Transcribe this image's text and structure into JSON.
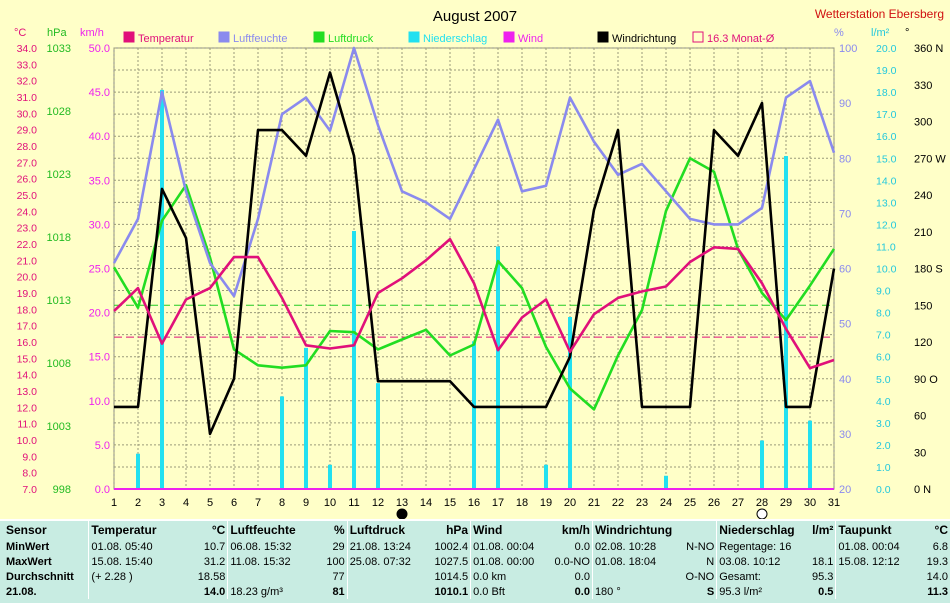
{
  "title": "August 2007",
  "station": "Wetterstation Ebersberg",
  "unit_headers": {
    "celsius": "°C",
    "hpa": "hPa",
    "kmh": "km/h",
    "percent": "%",
    "lm2": "l/m²",
    "degree": "°"
  },
  "legend": [
    {
      "label": "Temperatur",
      "color": "#e0107a"
    },
    {
      "label": "Luftfeuchte",
      "color": "#8a8aee"
    },
    {
      "label": "Luftdruck",
      "color": "#22dd22"
    },
    {
      "label": "Niederschlag",
      "color": "#22e0f0"
    },
    {
      "label": "Wind",
      "color": "#ee22ee"
    },
    {
      "label": "Windrichtung",
      "color": "#000000"
    },
    {
      "label": "16.3 Monat-Ø",
      "color": "#e0107a"
    }
  ],
  "axes": {
    "celsius": [
      "34.0",
      "33.0",
      "32.0",
      "31.0",
      "30.0",
      "29.0",
      "28.0",
      "27.0",
      "26.0",
      "25.0",
      "24.0",
      "23.0",
      "22.0",
      "21.0",
      "20.0",
      "19.0",
      "18.0",
      "17.0",
      "16.0",
      "15.0",
      "14.0",
      "13.0",
      "12.0",
      "11.0",
      "10.0",
      "9.0",
      "8.0",
      "7.0"
    ],
    "hpa": [
      "1033",
      "1028",
      "1023",
      "1018",
      "1013",
      "1008",
      "1003",
      "998"
    ],
    "kmh": [
      "50.0",
      "45.0",
      "40.0",
      "35.0",
      "30.0",
      "25.0",
      "20.0",
      "15.0",
      "10.0",
      "5.0",
      "0.0"
    ],
    "percent": [
      "100",
      "90",
      "80",
      "70",
      "60",
      "50",
      "40",
      "30",
      "20"
    ],
    "lm2": [
      "20.0",
      "19.0",
      "18.0",
      "17.0",
      "16.0",
      "15.0",
      "14.0",
      "13.0",
      "12.0",
      "11.0",
      "10.0",
      "9.0",
      "8.0",
      "7.0",
      "6.0",
      "5.0",
      "4.0",
      "3.0",
      "2.0",
      "1.0",
      "0.0"
    ],
    "degree": [
      "360 N",
      "330",
      "300",
      "270 W",
      "240",
      "210",
      "180 S",
      "150",
      "120",
      "90 O",
      "60",
      "30",
      "0 N"
    ],
    "days": [
      "1",
      "2",
      "3",
      "4",
      "5",
      "6",
      "7",
      "8",
      "9",
      "10",
      "11",
      "12",
      "13",
      "14",
      "15",
      "16",
      "17",
      "18",
      "19",
      "20",
      "21",
      "22",
      "23",
      "24",
      "25",
      "26",
      "27",
      "28",
      "29",
      "30",
      "31"
    ]
  },
  "chart_data": {
    "type": "line",
    "title": "August 2007",
    "xlabel": "",
    "x": [
      1,
      2,
      3,
      4,
      5,
      6,
      7,
      8,
      9,
      10,
      11,
      12,
      13,
      14,
      15,
      16,
      17,
      18,
      19,
      20,
      21,
      22,
      23,
      24,
      25,
      26,
      27,
      28,
      29,
      30,
      31
    ],
    "scales": {
      "temperature_c": [
        7,
        34
      ],
      "pressure_hpa": [
        998,
        1034
      ],
      "wind_kmh": [
        0,
        50
      ],
      "humidity_pct": [
        20,
        100
      ],
      "precip_lm2": [
        0,
        20
      ],
      "direction_deg": [
        0,
        360
      ]
    },
    "series": [
      {
        "name": "Temperatur",
        "axis": "temperature_c",
        "color": "#e0107a",
        "values": [
          17.9,
          19.3,
          15.9,
          18.6,
          19.3,
          21.2,
          21.2,
          18.7,
          15.8,
          15.6,
          15.8,
          19.0,
          19.9,
          21.0,
          22.3,
          19.6,
          15.5,
          17.5,
          18.6,
          15.4,
          17.7,
          18.7,
          19.1,
          19.4,
          20.9,
          21.8,
          21.7,
          19.6,
          16.8,
          14.4,
          14.9
        ]
      },
      {
        "name": "Luftfeuchte",
        "axis": "humidity_pct",
        "color": "#8a8aee",
        "values": [
          61,
          69,
          92,
          74,
          61,
          55,
          69,
          88,
          91,
          85,
          100,
          86,
          74,
          72,
          69,
          78,
          87,
          74,
          75,
          91,
          83,
          77,
          79,
          74,
          69,
          68,
          68,
          71,
          91,
          94,
          81
        ]
      },
      {
        "name": "Luftdruck",
        "axis": "pressure_hpa",
        "color": "#22dd22",
        "values": [
          1016.1,
          1012.8,
          1019.9,
          1022.8,
          1016.9,
          1009.4,
          1008.1,
          1007.9,
          1008.1,
          1010.9,
          1010.8,
          1009.4,
          1010.2,
          1011.0,
          1008.9,
          1009.8,
          1016.6,
          1014.4,
          1009.6,
          1006.2,
          1004.5,
          1008.9,
          1012.6,
          1020.7,
          1025.0,
          1023.9,
          1017.6,
          1014.0,
          1011.8,
          1014.6,
          1017.6
        ]
      },
      {
        "name": "Niederschlag",
        "axis": "precip_lm2",
        "type": "bar",
        "color": "#22e0f0",
        "values": [
          0,
          1.6,
          18.1,
          0,
          0,
          0,
          0,
          4.2,
          6.4,
          1.1,
          11.7,
          4.8,
          0,
          0,
          0,
          6.7,
          11.0,
          0,
          1.1,
          7.8,
          0,
          0,
          0,
          0.6,
          0,
          0,
          0,
          2.2,
          15.1,
          3.1,
          0
        ]
      },
      {
        "name": "Wind",
        "axis": "wind_kmh",
        "color": "#ee22ee",
        "values": [
          0,
          0,
          0,
          0,
          0,
          0,
          0,
          0,
          0,
          0,
          0,
          0,
          0,
          0,
          0,
          0,
          0,
          0,
          0,
          0,
          0,
          0,
          0,
          0,
          0,
          0,
          0,
          0,
          0,
          0,
          0
        ]
      },
      {
        "name": "Windrichtung",
        "axis": "direction_deg",
        "color": "#000000",
        "values": [
          67,
          67,
          245,
          205,
          45,
          90,
          293,
          293,
          272,
          340,
          272,
          88,
          88,
          88,
          88,
          67,
          67,
          67,
          67,
          108,
          228,
          293,
          67,
          67,
          67,
          293,
          272,
          315,
          67,
          67,
          180
        ]
      }
    ],
    "reference_lines": [
      {
        "label": "16.3 Monat-Ø",
        "axis": "temperature_c",
        "value": 16.3,
        "color": "#e0107a"
      },
      {
        "axis": "pressure_hpa",
        "value": 1013,
        "color": "#22cc22"
      }
    ],
    "moon_markers": [
      {
        "day": 13,
        "phase": "new"
      },
      {
        "day": 28,
        "phase": "full"
      }
    ],
    "grid": true
  },
  "stats": {
    "row_labels": [
      "Sensor",
      "MinWert",
      "MaxWert",
      "Durchschnitt",
      "21.08."
    ],
    "groups": [
      {
        "name": "Temperatur",
        "unit": "°C",
        "rows": [
          [
            "01.08.  05:40",
            "10.7"
          ],
          [
            "15.08.  15:40",
            "31.2"
          ],
          [
            "(+ 2.28 )",
            "18.58"
          ],
          [
            "",
            "14.0"
          ]
        ]
      },
      {
        "name": "Luftfeuchte",
        "unit": "%",
        "rows": [
          [
            "06.08.  15:32",
            "29"
          ],
          [
            "11.08.  15:32",
            "100"
          ],
          [
            "",
            "77"
          ],
          [
            "18.23 g/m³",
            "81"
          ]
        ]
      },
      {
        "name": "Luftdruck",
        "unit": "hPa",
        "rows": [
          [
            "21.08.  13:24",
            "1002.4"
          ],
          [
            "25.08.  07:32",
            "1027.5"
          ],
          [
            "",
            "1014.5"
          ],
          [
            "",
            "1010.1"
          ]
        ]
      },
      {
        "name": "Wind",
        "unit": "km/h",
        "rows": [
          [
            "01.08.  00:04",
            "0.0"
          ],
          [
            "01.08.  00:00",
            "0.0-NO"
          ],
          [
            "0.0 km",
            "0.0"
          ],
          [
            "0.0 Bft",
            "0.0"
          ]
        ]
      },
      {
        "name": "Windrichtung",
        "unit": "",
        "rows": [
          [
            "02.08.  10:28",
            "N-NO"
          ],
          [
            "01.08.  18:04",
            "N"
          ],
          [
            "",
            "O-NO"
          ],
          [
            "180 °",
            "S"
          ]
        ]
      },
      {
        "name": "Niederschlag",
        "unit": "l/m²",
        "rows": [
          [
            "Regentage: 16",
            ""
          ],
          [
            "03.08.  10:12",
            "18.1"
          ],
          [
            "Gesamt:",
            "95.3"
          ],
          [
            "95.3 l/m²",
            "0.5"
          ]
        ]
      },
      {
        "name": "Taupunkt",
        "unit": "°C",
        "rows": [
          [
            "01.08.  00:04",
            "6.8"
          ],
          [
            "15.08.  12:12",
            "19.3"
          ],
          [
            "",
            "14.0"
          ],
          [
            "",
            "11.3"
          ]
        ]
      }
    ]
  }
}
